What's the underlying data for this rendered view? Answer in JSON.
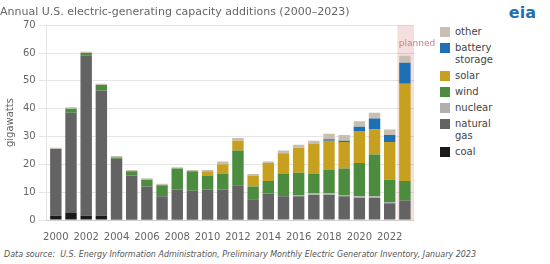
{
  "chart_data": {
    "type": "bar",
    "title": "Annual U.S. electric-generating capacity additions (2000–2023)",
    "ylabel": "gigawatts",
    "x": [
      2000,
      2001,
      2002,
      2003,
      2004,
      2005,
      2006,
      2007,
      2008,
      2009,
      2010,
      2011,
      2012,
      2013,
      2014,
      2015,
      2016,
      2017,
      2018,
      2019,
      2020,
      2021,
      2022,
      2023
    ],
    "series": [
      {
        "name": "coal",
        "color": "#1a1a1a",
        "values": [
          1.5,
          2.5,
          1.5,
          1.5,
          0.5,
          0.5,
          0.5,
          0.5,
          0.5,
          0.5,
          0.5,
          0.5,
          0.5,
          0.5,
          0.0,
          0.0,
          0.0,
          0.0,
          0.0,
          0.0,
          0.0,
          0.0,
          0.0,
          0.0
        ]
      },
      {
        "name": "natural\ngas",
        "color": "#636363",
        "values": [
          24.0,
          36.0,
          57.5,
          45.0,
          21.5,
          15.5,
          11.5,
          8.0,
          10.5,
          10.0,
          10.5,
          10.5,
          12.0,
          7.0,
          9.5,
          8.5,
          8.5,
          9.0,
          9.0,
          8.5,
          8.0,
          8.0,
          6.0,
          7.0
        ]
      },
      {
        "name": "nuclear",
        "color": "#b0b0b0",
        "values": [
          0.0,
          0.0,
          0.0,
          0.0,
          0.0,
          0.0,
          0.0,
          0.0,
          0.0,
          0.0,
          0.0,
          0.0,
          0.0,
          0.0,
          0.0,
          0.0,
          0.5,
          0.5,
          0.5,
          0.5,
          0.5,
          0.5,
          0.5,
          0.0
        ]
      },
      {
        "name": "wind",
        "color": "#4c8c3f",
        "values": [
          0.0,
          1.5,
          1.0,
          2.0,
          0.5,
          1.5,
          2.5,
          4.0,
          7.5,
          7.0,
          5.0,
          5.5,
          12.5,
          4.5,
          4.5,
          8.0,
          8.0,
          7.0,
          8.5,
          9.5,
          12.0,
          15.0,
          8.0,
          7.0
        ]
      },
      {
        "name": "solar",
        "color": "#c8a020",
        "values": [
          0.0,
          0.0,
          0.0,
          0.0,
          0.0,
          0.0,
          0.0,
          0.0,
          0.0,
          0.0,
          1.5,
          3.5,
          3.5,
          4.0,
          6.5,
          7.5,
          9.0,
          11.0,
          10.5,
          9.5,
          11.5,
          9.0,
          13.5,
          35.0
        ]
      },
      {
        "name": "battery\nstorage",
        "color": "#1f6fb5",
        "values": [
          0.0,
          0.0,
          0.0,
          0.0,
          0.0,
          0.0,
          0.0,
          0.0,
          0.0,
          0.0,
          0.0,
          0.0,
          0.0,
          0.0,
          0.0,
          0.0,
          0.0,
          0.0,
          0.5,
          0.5,
          1.5,
          4.0,
          2.5,
          7.5
        ]
      },
      {
        "name": "other",
        "color": "#c8bfb0",
        "values": [
          0.5,
          0.5,
          0.5,
          0.5,
          0.5,
          0.5,
          0.5,
          0.5,
          0.5,
          0.5,
          0.5,
          1.0,
          1.0,
          0.5,
          0.5,
          1.0,
          1.0,
          1.0,
          2.0,
          2.0,
          2.0,
          2.0,
          2.0,
          2.5
        ]
      }
    ],
    "stacked": true,
    "xlim": [
      1999.4,
      2023.6
    ],
    "xticks": [
      2000,
      2002,
      2004,
      2006,
      2008,
      2010,
      2012,
      2014,
      2016,
      2018,
      2020,
      2022
    ],
    "ylim": [
      0,
      70
    ],
    "yticks": [
      0,
      10,
      20,
      30,
      40,
      50,
      60,
      70
    ],
    "grid": "y",
    "legend": "right",
    "annotations": [
      {
        "text": "planned",
        "x": 2023,
        "y": 65,
        "color": "#d08080",
        "band_color": "#f5dede"
      },
      {
        "text": "eia",
        "color": "#1f6fb5"
      }
    ],
    "footnote": "Data source:  U.S. Energy Information Administration, Preliminary Monthly Electric Generator Inventory, January 2023"
  }
}
